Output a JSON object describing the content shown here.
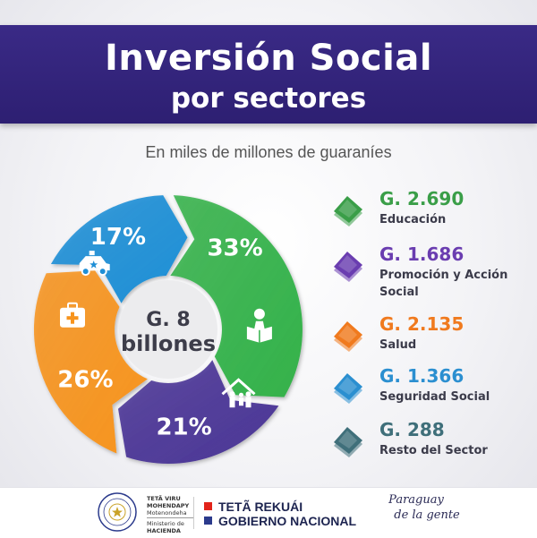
{
  "header": {
    "title_line1": "Inversión Social",
    "title_line2": "por sectores"
  },
  "subtitle": "En miles de millones de guaraníes",
  "chart_data": {
    "type": "pie",
    "variant": "donut-arrows",
    "center_label": "G. 8 billones",
    "unit": "miles de millones de guaraníes",
    "slices": [
      {
        "label": "Educación",
        "percent": 33,
        "color": "#34b24a"
      },
      {
        "label": "Promoción y Acción Social",
        "percent": 21,
        "color": "#4a3596"
      },
      {
        "label": "Salud",
        "percent": 26,
        "color": "#f7941d"
      },
      {
        "label": "Seguridad Social",
        "percent": 17,
        "color": "#1f8fd6"
      }
    ],
    "percent_labels": [
      "33%",
      "21%",
      "26%",
      "17%"
    ],
    "icons": [
      "reading-person-icon",
      "family-house-icon",
      "medical-kit-icon",
      "police-car-icon"
    ]
  },
  "legend": [
    {
      "value": "G. 2.690",
      "label": "Educación",
      "color": "#3a9e48"
    },
    {
      "value": "G. 1.686",
      "label": "Promoción y Acción Social",
      "color": "#6a3db0"
    },
    {
      "value": "G. 2.135",
      "label": "Salud",
      "color": "#f07a1e"
    },
    {
      "value": "G. 1.366",
      "label": "Seguridad Social",
      "color": "#2b8fd0"
    },
    {
      "value": "G. 288",
      "label": "Resto del Sector",
      "color": "#3f6f7a"
    }
  ],
  "footer": {
    "ministry_line1": "TETÃ VIRU",
    "ministry_line2": "MOHENDAPY",
    "ministry_line3": "Motenondeha",
    "ministry_line4": "Ministerio de",
    "ministry_line5": "HACIENDA",
    "gov_line1": "TETÃ REKUÁI",
    "gov_line2": "GOBIERNO NACIONAL",
    "slogan_line1": "Paraguay",
    "slogan_line2": "de la gente",
    "gov_color1": "#e2231a",
    "gov_color2": "#2b3a8c"
  }
}
